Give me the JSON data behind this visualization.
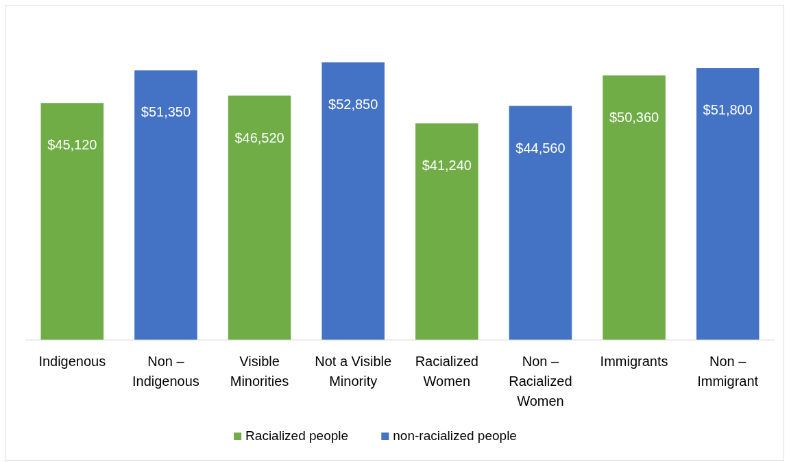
{
  "chart_data": {
    "type": "bar",
    "stacked": true,
    "legend": "bottom",
    "grid": false,
    "categories": [
      "Indigenous",
      "Non – Indigenous",
      "Visible Minorities",
      "Not a Visible Minority",
      "Racialized Women",
      "Non – Racialized Women",
      "Immigrants",
      "Non – Immigrant"
    ],
    "series": [
      {
        "name": "Racialized people",
        "color": "#70ad47",
        "values": [
          45120,
          null,
          46520,
          null,
          41240,
          null,
          50360,
          null
        ],
        "value_labels": [
          "$45,120",
          null,
          "$46,520",
          null,
          "$41,240",
          null,
          "$50,360",
          null
        ]
      },
      {
        "name": "non-racialized people",
        "color": "#4472c4",
        "values": [
          null,
          51350,
          null,
          52850,
          null,
          44560,
          null,
          51800
        ],
        "value_labels": [
          null,
          "$51,350",
          null,
          "$52,850",
          null,
          "$44,560",
          null,
          "$51,800"
        ]
      }
    ]
  }
}
